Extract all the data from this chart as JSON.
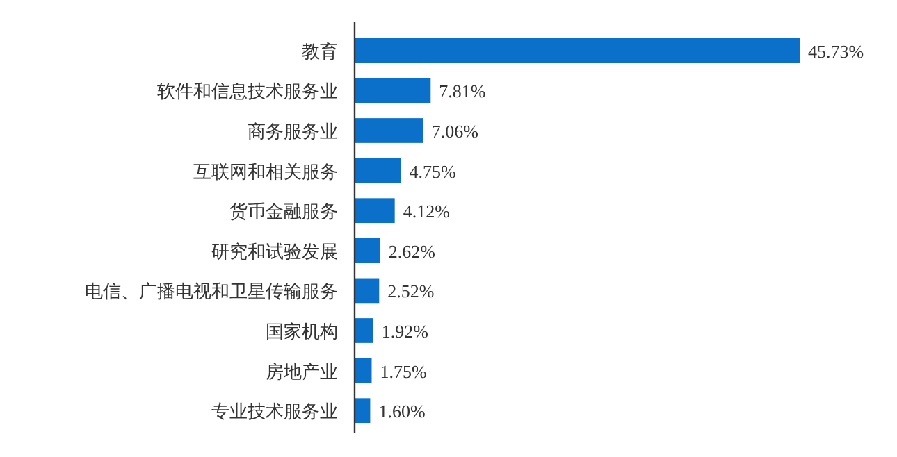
{
  "chart_data": {
    "type": "bar",
    "orientation": "horizontal",
    "categories": [
      "教育",
      "软件和信息技术服务业",
      "商务服务业",
      "互联网和相关服务",
      "货币金融服务",
      "研究和试验发展",
      "电信、广播电视和卫星传输服务",
      "国家机构",
      "房地产业",
      "专业技术服务业"
    ],
    "values": [
      45.73,
      7.81,
      7.06,
      4.75,
      4.12,
      2.62,
      2.52,
      1.92,
      1.75,
      1.6
    ],
    "value_labels": [
      "45.73%",
      "7.81%",
      "7.06%",
      "4.75%",
      "4.12%",
      "2.62%",
      "2.52%",
      "1.92%",
      "1.75%",
      "1.60%"
    ],
    "color": "#0a70c9"
  }
}
